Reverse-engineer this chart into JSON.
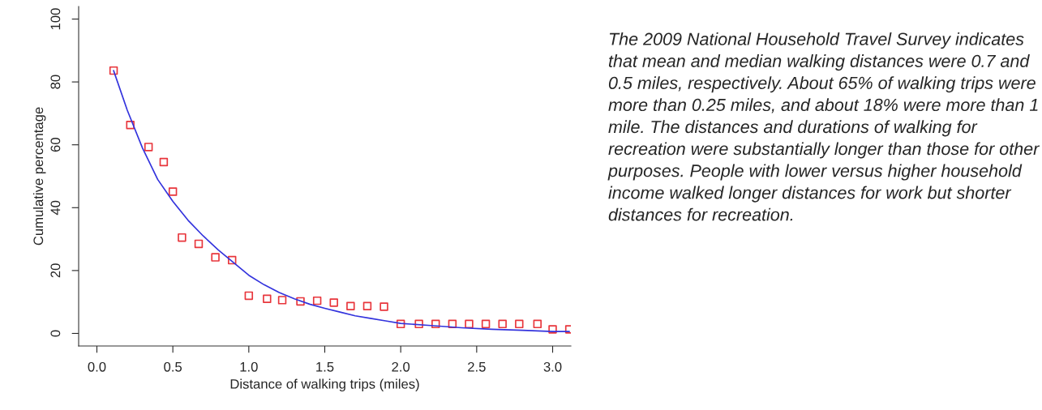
{
  "chart_data": {
    "type": "scatter",
    "xlabel": "Distance of walking trips (miles)",
    "ylabel": "Cumulative percentage",
    "xlim": [
      -0.12,
      3.12
    ],
    "ylim": [
      -4,
      104
    ],
    "xticks": [
      {
        "value": 0,
        "label": "0.0"
      },
      {
        "value": 0.5,
        "label": "0.5"
      },
      {
        "value": 1,
        "label": "1.0"
      },
      {
        "value": 1.5,
        "label": "1.5"
      },
      {
        "value": 2,
        "label": "2.0"
      },
      {
        "value": 2.5,
        "label": "2.5"
      },
      {
        "value": 3,
        "label": "3.0"
      }
    ],
    "yticks": [
      0,
      20,
      40,
      60,
      80,
      100
    ],
    "grid": false,
    "legend": false,
    "series": [
      {
        "color": "#e8363c",
        "marker": "square",
        "x": [
          0.11,
          0.22,
          0.34,
          0.44,
          0.5,
          0.56,
          0.67,
          0.78,
          0.89,
          1.0,
          1.12,
          1.22,
          1.34,
          1.45,
          1.56,
          1.67,
          1.78,
          1.89,
          2.0,
          2.12,
          2.23,
          2.34,
          2.45,
          2.56,
          2.67,
          2.78,
          2.9,
          3.0,
          3.11
        ],
        "values": [
          83.6,
          66.3,
          59.3,
          54.5,
          45.1,
          30.5,
          28.5,
          24.2,
          23.3,
          12.0,
          11.0,
          10.6,
          10.2,
          10.4,
          9.8,
          8.7,
          8.7,
          8.5,
          3.0,
          3.0,
          3.0,
          3.0,
          3.0,
          3.0,
          3.0,
          3.0,
          3.0,
          1.3,
          1.3
        ]
      },
      {
        "type": "line",
        "color": "#3333dd",
        "line_style": "solid",
        "x": [
          0.11,
          0.2,
          0.3,
          0.4,
          0.5,
          0.6,
          0.7,
          0.8,
          0.9,
          1.0,
          1.1,
          1.2,
          1.3,
          1.4,
          1.5,
          1.6,
          1.7,
          1.8,
          1.9,
          2.0,
          2.2,
          2.4,
          2.6,
          2.8,
          3.0,
          3.11
        ],
        "values": [
          83.6,
          71,
          59,
          49,
          42,
          36,
          31,
          26.5,
          22.5,
          18.5,
          15.5,
          13,
          11,
          9.3,
          8,
          6.8,
          5.6,
          4.8,
          4,
          3.2,
          2.5,
          1.8,
          1.3,
          1.0,
          0.6,
          0.6
        ]
      }
    ],
    "annotations": [
      "The 2009 National Household Travel Survey indicates that mean and median walking distances were 0.7 and 0.5 miles, respectively. About 65% of walking trips were more than 0.25 miles, and about 18% were more than 1 mile. The distances and durations of walking for recreation were substantially longer than those for other purposes. People with lower versus higher household income walked longer distances for work but shorter distances for recreation."
    ]
  }
}
